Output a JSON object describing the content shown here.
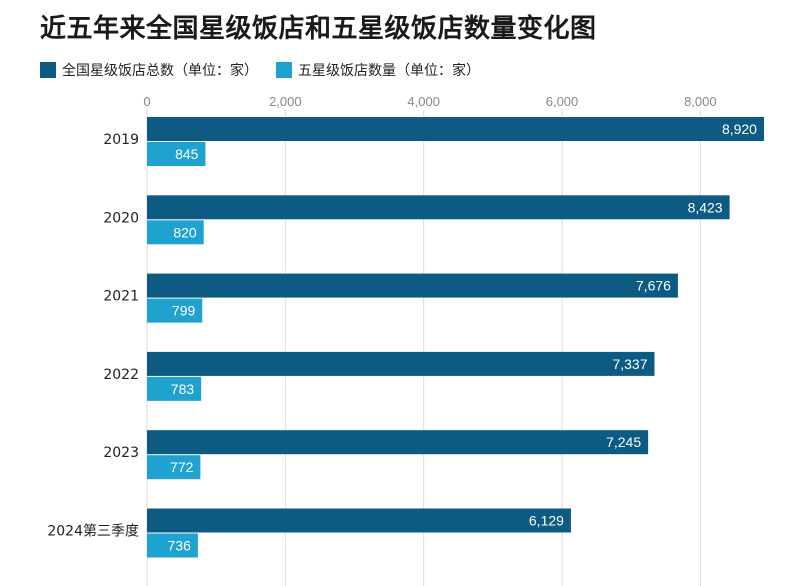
{
  "title": "近五年来全国星级饭店和五星级饭店数量变化图",
  "legend": [
    {
      "label": "全国星级饭店总数（单位：家）",
      "color": "#0d5b82"
    },
    {
      "label": "五星级饭店数量（单位：家）",
      "color": "#1fa2d0"
    }
  ],
  "chart_data": {
    "type": "bar",
    "orientation": "horizontal",
    "title": "近五年来全国星级饭店和五星级饭店数量变化图",
    "categories": [
      "2019",
      "2020",
      "2021",
      "2022",
      "2023",
      "2024第三季度"
    ],
    "series": [
      {
        "name": "全国星级饭店总数（单位：家）",
        "color": "#0d5b82",
        "values": [
          8920,
          8423,
          7676,
          7337,
          7245,
          6129
        ],
        "labels": [
          "8,920",
          "8,423",
          "7,676",
          "7,337",
          "7,245",
          "6,129"
        ]
      },
      {
        "name": "五星级饭店数量（单位：家）",
        "color": "#1fa2d0",
        "values": [
          845,
          820,
          799,
          783,
          772,
          736
        ],
        "labels": [
          "845",
          "820",
          "799",
          "783",
          "772",
          "736"
        ]
      }
    ],
    "xticks": [
      0,
      2000,
      4000,
      6000,
      8000
    ],
    "xtick_labels": [
      "0",
      "2,000",
      "4,000",
      "6,000",
      "8,000"
    ],
    "xlim": [
      0,
      8920
    ],
    "axis_position": "top",
    "grid": true,
    "legend_position": "top-left"
  }
}
